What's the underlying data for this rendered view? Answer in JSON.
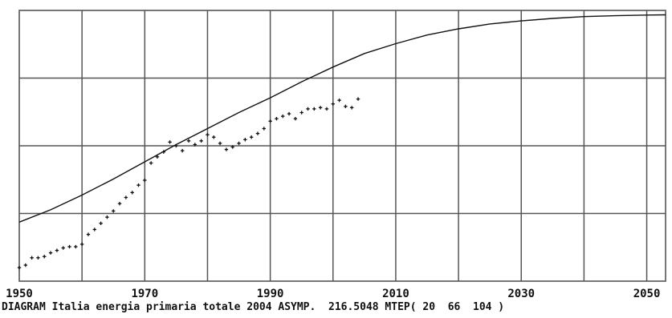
{
  "caption": "DIAGRAM Italia energia primaria totale 2004 ASYMP.  216.5048 MTEP( 20  66  104 )",
  "chart_data": {
    "type": "scatter",
    "title": "",
    "xlabel": "",
    "ylabel": "",
    "xlim": [
      1950,
      2053
    ],
    "ylim": [
      0,
      220
    ],
    "x_ticks": [
      1950,
      1970,
      1990,
      2010,
      2030,
      2050
    ],
    "x_tick_labels": [
      "1950",
      "1970",
      "1990",
      "2010",
      "2030",
      "2050"
    ],
    "grid": true,
    "series": [
      {
        "kind": "points",
        "x": [
          1950,
          1951,
          1952,
          1953,
          1954,
          1955,
          1956,
          1957,
          1958,
          1959,
          1960,
          1961,
          1962,
          1963,
          1964,
          1965,
          1966,
          1967,
          1968,
          1969,
          1970,
          1971,
          1972,
          1973,
          1974,
          1975,
          1976,
          1977,
          1978,
          1979,
          1980,
          1981,
          1982,
          1983,
          1984,
          1985,
          1986,
          1987,
          1988,
          1989,
          1990,
          1991,
          1992,
          1993,
          1994,
          1995,
          1996,
          1997,
          1998,
          1999,
          2000,
          2001,
          2002,
          2003,
          2004
        ],
        "y": [
          11,
          13,
          19,
          19,
          20,
          23,
          25,
          27,
          28,
          28,
          30,
          38,
          42,
          47,
          52,
          57,
          63,
          68,
          72,
          78,
          82,
          96,
          101,
          105,
          113,
          110,
          106,
          114,
          111,
          114,
          119,
          117,
          112,
          107,
          109,
          112,
          115,
          117,
          120,
          124,
          130,
          132,
          134,
          136,
          132,
          137,
          140,
          140,
          141,
          140,
          144,
          147,
          142,
          141,
          148
        ]
      },
      {
        "kind": "logistic-fit",
        "asymptote": 216.5048,
        "x": [
          1950,
          1955,
          1960,
          1965,
          1970,
          1975,
          1980,
          1985,
          1990,
          1995,
          2000,
          2005,
          2010,
          2015,
          2020,
          2025,
          2030,
          2035,
          2040,
          2045,
          2050,
          2053
        ],
        "y": [
          48,
          58,
          70,
          83,
          97,
          111,
          124,
          137,
          149,
          162,
          174,
          185,
          193,
          200,
          205,
          209,
          211.5,
          213.5,
          215,
          215.7,
          216.2,
          216.4
        ]
      }
    ]
  }
}
